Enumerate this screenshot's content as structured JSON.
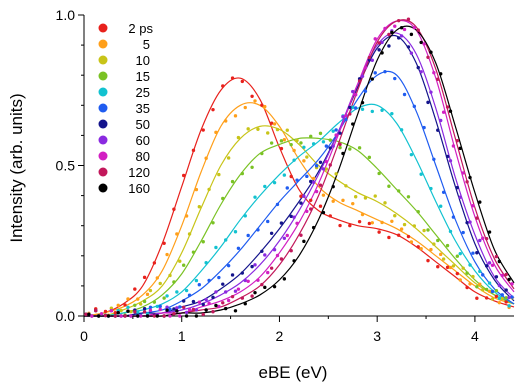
{
  "chart_data": {
    "type": "line",
    "xlabel": "eBE (eV)",
    "ylabel": "Intensity (arb. units)",
    "xlim": [
      0,
      4.4
    ],
    "ylim": [
      0,
      1.0
    ],
    "xticks": [
      0,
      1,
      2,
      3,
      4
    ],
    "yticks": [
      0.0,
      0.5,
      1.0
    ],
    "xtick_labels": [
      "0",
      "1",
      "2",
      "3",
      "4"
    ],
    "ytick_labels": [
      "0.0",
      "0.5",
      "1.0"
    ],
    "grid": false,
    "legend_position": "top-left",
    "legend_marker": "dot",
    "x": [
      0.0,
      0.2,
      0.4,
      0.6,
      0.8,
      1.0,
      1.2,
      1.4,
      1.6,
      1.8,
      2.0,
      2.2,
      2.4,
      2.6,
      2.8,
      3.0,
      3.2,
      3.4,
      3.6,
      3.8,
      4.0,
      4.2,
      4.4
    ],
    "series": [
      {
        "name": "2 ps",
        "color": "#e8211c",
        "values": [
          0.0,
          0.01,
          0.04,
          0.1,
          0.24,
          0.43,
          0.62,
          0.75,
          0.79,
          0.72,
          0.56,
          0.42,
          0.35,
          0.32,
          0.3,
          0.29,
          0.27,
          0.23,
          0.18,
          0.13,
          0.08,
          0.05,
          0.03
        ]
      },
      {
        "name": "5",
        "color": "#ff9f1a",
        "values": [
          0.0,
          0.01,
          0.03,
          0.07,
          0.15,
          0.3,
          0.48,
          0.63,
          0.7,
          0.7,
          0.63,
          0.52,
          0.43,
          0.38,
          0.35,
          0.32,
          0.29,
          0.25,
          0.2,
          0.15,
          0.1,
          0.06,
          0.04
        ]
      },
      {
        "name": "10",
        "color": "#c8c418",
        "values": [
          0.0,
          0.0,
          0.02,
          0.05,
          0.1,
          0.21,
          0.36,
          0.5,
          0.59,
          0.63,
          0.62,
          0.57,
          0.5,
          0.45,
          0.41,
          0.38,
          0.34,
          0.29,
          0.23,
          0.17,
          0.11,
          0.07,
          0.04
        ]
      },
      {
        "name": "15",
        "color": "#7ac224",
        "values": [
          0.0,
          0.0,
          0.01,
          0.03,
          0.07,
          0.14,
          0.25,
          0.37,
          0.47,
          0.54,
          0.57,
          0.59,
          0.59,
          0.58,
          0.55,
          0.49,
          0.42,
          0.35,
          0.27,
          0.19,
          0.12,
          0.07,
          0.04
        ]
      },
      {
        "name": "25",
        "color": "#12c2d0",
        "values": [
          0.0,
          0.0,
          0.01,
          0.02,
          0.04,
          0.08,
          0.15,
          0.23,
          0.32,
          0.4,
          0.47,
          0.53,
          0.58,
          0.64,
          0.69,
          0.7,
          0.64,
          0.52,
          0.38,
          0.25,
          0.15,
          0.08,
          0.04
        ]
      },
      {
        "name": "35",
        "color": "#1f5cf0",
        "values": [
          0.0,
          0.0,
          0.0,
          0.01,
          0.02,
          0.05,
          0.09,
          0.15,
          0.22,
          0.3,
          0.38,
          0.45,
          0.52,
          0.61,
          0.72,
          0.8,
          0.8,
          0.68,
          0.5,
          0.32,
          0.18,
          0.09,
          0.04
        ]
      },
      {
        "name": "50",
        "color": "#14148c",
        "values": [
          0.0,
          0.0,
          0.0,
          0.01,
          0.01,
          0.03,
          0.05,
          0.09,
          0.14,
          0.21,
          0.29,
          0.38,
          0.48,
          0.61,
          0.76,
          0.89,
          0.93,
          0.84,
          0.65,
          0.43,
          0.24,
          0.12,
          0.05
        ]
      },
      {
        "name": "60",
        "color": "#8a2ae0",
        "values": [
          0.0,
          0.0,
          0.0,
          0.0,
          0.01,
          0.02,
          0.04,
          0.07,
          0.11,
          0.17,
          0.25,
          0.35,
          0.47,
          0.61,
          0.77,
          0.9,
          0.94,
          0.87,
          0.69,
          0.46,
          0.27,
          0.13,
          0.06
        ]
      },
      {
        "name": "80",
        "color": "#d21fc2",
        "values": [
          0.0,
          0.0,
          0.0,
          0.0,
          0.01,
          0.01,
          0.03,
          0.05,
          0.08,
          0.13,
          0.21,
          0.31,
          0.44,
          0.6,
          0.77,
          0.92,
          0.98,
          0.95,
          0.79,
          0.55,
          0.33,
          0.17,
          0.08
        ]
      },
      {
        "name": "120",
        "color": "#c2185b",
        "values": [
          0.0,
          0.0,
          0.0,
          0.0,
          0.0,
          0.01,
          0.02,
          0.03,
          0.06,
          0.1,
          0.17,
          0.27,
          0.4,
          0.57,
          0.75,
          0.91,
          0.98,
          0.96,
          0.82,
          0.59,
          0.36,
          0.19,
          0.09
        ]
      },
      {
        "name": "160",
        "color": "#000000",
        "values": [
          0.0,
          0.0,
          0.0,
          0.0,
          0.0,
          0.01,
          0.01,
          0.02,
          0.04,
          0.07,
          0.12,
          0.2,
          0.32,
          0.48,
          0.67,
          0.85,
          0.95,
          0.95,
          0.84,
          0.63,
          0.41,
          0.22,
          0.11
        ]
      }
    ]
  }
}
